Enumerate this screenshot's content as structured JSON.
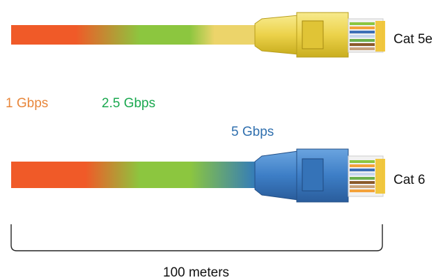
{
  "cables": [
    {
      "label": "Cat 5e",
      "colors": {
        "plug": "#ecd24a",
        "plug_dark": "#c9ae1f",
        "plug_light": "#f7ea8c",
        "jacket_end": "#ecd46a"
      }
    },
    {
      "label": "Cat 6",
      "colors": {
        "plug": "#3d7ec6",
        "plug_dark": "#2a5d9c",
        "plug_light": "#6aa4df",
        "jacket_end": "#2f78c0"
      }
    }
  ],
  "speeds": [
    {
      "label": "1 Gbps",
      "color": "#e8863a"
    },
    {
      "label": "2.5 Gbps",
      "color": "#1aa84f"
    },
    {
      "label": "5 Gbps",
      "color": "#2f6fae"
    }
  ],
  "gradient_colors": {
    "red": "#f05a28",
    "green": "#8cc63f",
    "yellow": "#ecd46a",
    "blue": "#2f78c0"
  },
  "distance": {
    "label": "100 meters"
  }
}
